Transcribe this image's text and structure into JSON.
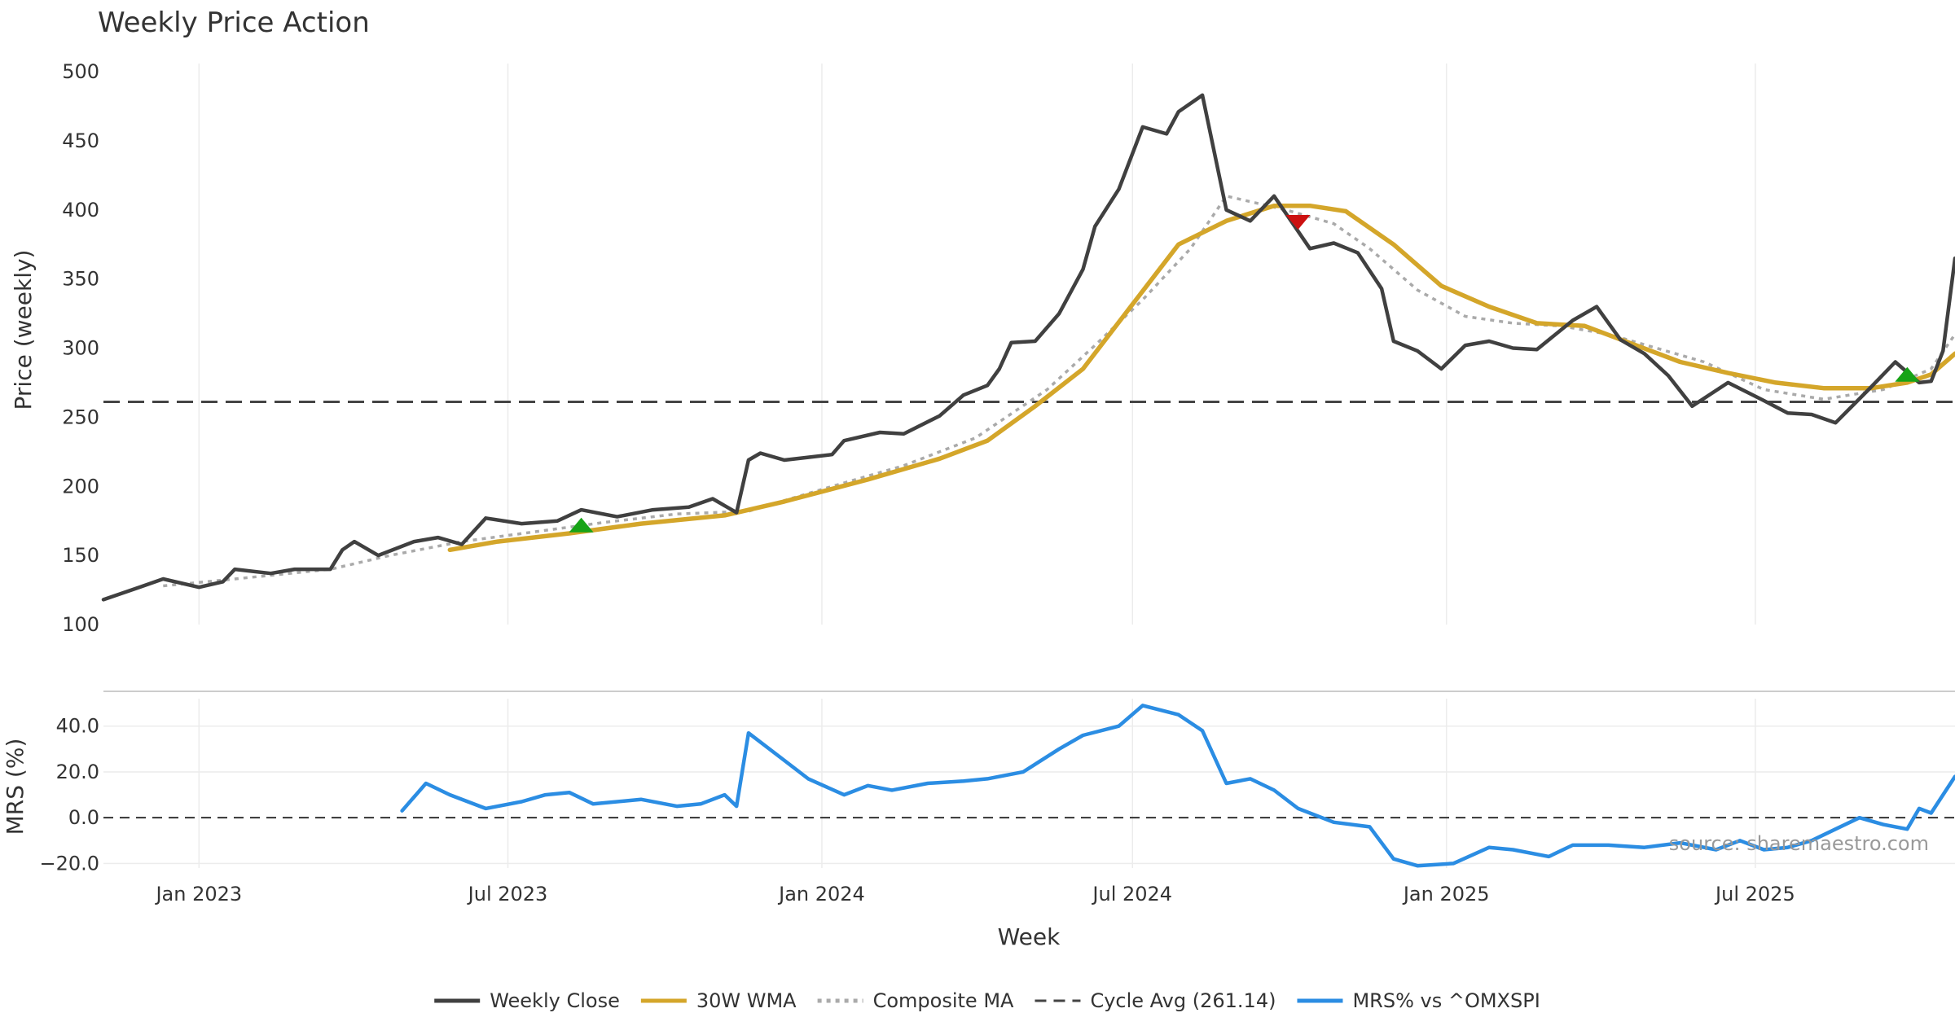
{
  "chart_data": {
    "type": "line",
    "title": "Weekly Price Action",
    "source": "source: sharemaestro.com",
    "xlabel": "Week",
    "x_ticks": [
      "Jan 2023",
      "Jul 2023",
      "Jan 2024",
      "Jul 2024",
      "Jan 2025",
      "Jul 2025"
    ],
    "x_tick_dates": [
      "2023-01-01",
      "2023-07-01",
      "2024-01-01",
      "2024-07-01",
      "2025-01-01",
      "2025-07-01"
    ],
    "x_range": [
      "2022-11-06",
      "2025-10-26"
    ],
    "price_panel": {
      "ylabel": "Price (weekly)",
      "ylim": [
        100,
        500
      ],
      "yticks": [
        "100",
        "150",
        "200",
        "250",
        "300",
        "350",
        "400",
        "450",
        "500"
      ],
      "cycle_avg": 261.14,
      "series": [
        {
          "name": "Weekly Close",
          "color": "#404040",
          "style": "solid",
          "points": [
            [
              "2022-11-06",
              118
            ],
            [
              "2022-11-27",
              127
            ],
            [
              "2022-12-11",
              133
            ],
            [
              "2023-01-01",
              127
            ],
            [
              "2023-01-15",
              131
            ],
            [
              "2023-01-22",
              140
            ],
            [
              "2023-02-12",
              137
            ],
            [
              "2023-02-26",
              140
            ],
            [
              "2023-03-19",
              140
            ],
            [
              "2023-03-26",
              154
            ],
            [
              "2023-04-02",
              160
            ],
            [
              "2023-04-16",
              150
            ],
            [
              "2023-05-07",
              160
            ],
            [
              "2023-05-21",
              163
            ],
            [
              "2023-06-04",
              158
            ],
            [
              "2023-06-18",
              177
            ],
            [
              "2023-07-09",
              173
            ],
            [
              "2023-07-30",
              175
            ],
            [
              "2023-08-13",
              183
            ],
            [
              "2023-09-03",
              178
            ],
            [
              "2023-09-24",
              183
            ],
            [
              "2023-10-15",
              185
            ],
            [
              "2023-10-29",
              191
            ],
            [
              "2023-11-12",
              181
            ],
            [
              "2023-11-19",
              219
            ],
            [
              "2023-11-26",
              224
            ],
            [
              "2023-12-10",
              219
            ],
            [
              "2023-12-24",
              221
            ],
            [
              "2024-01-07",
              223
            ],
            [
              "2024-01-14",
              233
            ],
            [
              "2024-02-04",
              239
            ],
            [
              "2024-02-18",
              238
            ],
            [
              "2024-03-10",
              251
            ],
            [
              "2024-03-24",
              266
            ],
            [
              "2024-04-07",
              273
            ],
            [
              "2024-04-14",
              285
            ],
            [
              "2024-04-21",
              304
            ],
            [
              "2024-05-05",
              305
            ],
            [
              "2024-05-19",
              325
            ],
            [
              "2024-06-02",
              357
            ],
            [
              "2024-06-09",
              388
            ],
            [
              "2024-06-23",
              415
            ],
            [
              "2024-07-07",
              460
            ],
            [
              "2024-07-21",
              455
            ],
            [
              "2024-07-28",
              471
            ],
            [
              "2024-08-11",
              483
            ],
            [
              "2024-08-25",
              400
            ],
            [
              "2024-09-08",
              392
            ],
            [
              "2024-09-22",
              410
            ],
            [
              "2024-10-13",
              372
            ],
            [
              "2024-10-27",
              376
            ],
            [
              "2024-11-10",
              369
            ],
            [
              "2024-11-24",
              343
            ],
            [
              "2024-12-01",
              305
            ],
            [
              "2024-12-15",
              298
            ],
            [
              "2024-12-29",
              285
            ],
            [
              "2025-01-12",
              302
            ],
            [
              "2025-01-26",
              305
            ],
            [
              "2025-02-09",
              300
            ],
            [
              "2025-02-23",
              299
            ],
            [
              "2025-03-16",
              320
            ],
            [
              "2025-03-30",
              330
            ],
            [
              "2025-04-13",
              306
            ],
            [
              "2025-04-27",
              296
            ],
            [
              "2025-05-11",
              280
            ],
            [
              "2025-05-25",
              258
            ],
            [
              "2025-06-15",
              275
            ],
            [
              "2025-07-06",
              262
            ],
            [
              "2025-07-20",
              253
            ],
            [
              "2025-08-03",
              252
            ],
            [
              "2025-08-17",
              246
            ],
            [
              "2025-09-07",
              272
            ],
            [
              "2025-09-21",
              290
            ],
            [
              "2025-10-05",
              275
            ],
            [
              "2025-10-12",
              276
            ],
            [
              "2025-10-19",
              298
            ],
            [
              "2025-10-26",
              365
            ]
          ]
        },
        {
          "name": "30W WMA",
          "color": "#d4a62a",
          "style": "solid",
          "points": [
            [
              "2023-05-28",
              154
            ],
            [
              "2023-06-25",
              160
            ],
            [
              "2023-08-06",
              166
            ],
            [
              "2023-09-17",
              173
            ],
            [
              "2023-11-05",
              179
            ],
            [
              "2023-12-10",
              189
            ],
            [
              "2024-01-28",
              205
            ],
            [
              "2024-03-10",
              220
            ],
            [
              "2024-04-07",
              233
            ],
            [
              "2024-05-05",
              258
            ],
            [
              "2024-06-02",
              285
            ],
            [
              "2024-06-30",
              330
            ],
            [
              "2024-07-28",
              375
            ],
            [
              "2024-08-25",
              392
            ],
            [
              "2024-09-22",
              403
            ],
            [
              "2024-10-13",
              403
            ],
            [
              "2024-11-03",
              399
            ],
            [
              "2024-12-01",
              375
            ],
            [
              "2024-12-29",
              345
            ],
            [
              "2025-01-26",
              330
            ],
            [
              "2025-02-23",
              318
            ],
            [
              "2025-03-23",
              316
            ],
            [
              "2025-04-20",
              303
            ],
            [
              "2025-05-18",
              290
            ],
            [
              "2025-06-15",
              282
            ],
            [
              "2025-07-13",
              275
            ],
            [
              "2025-08-10",
              271
            ],
            [
              "2025-09-07",
              271
            ],
            [
              "2025-09-28",
              275
            ],
            [
              "2025-10-12",
              281
            ],
            [
              "2025-10-26",
              296
            ]
          ]
        },
        {
          "name": "Composite MA",
          "color": "#aaaaaa",
          "style": "dotted",
          "points": [
            [
              "2022-12-11",
              128
            ],
            [
              "2023-01-22",
              133
            ],
            [
              "2023-03-19",
              140
            ],
            [
              "2023-04-23",
              150
            ],
            [
              "2023-06-04",
              160
            ],
            [
              "2023-07-16",
              167
            ],
            [
              "2023-08-27",
              174
            ],
            [
              "2023-10-08",
              180
            ],
            [
              "2023-11-19",
              182
            ],
            [
              "2024-01-07",
              200
            ],
            [
              "2024-02-18",
              215
            ],
            [
              "2024-03-31",
              235
            ],
            [
              "2024-05-12",
              270
            ],
            [
              "2024-06-09",
              302
            ],
            [
              "2024-07-07",
              335
            ],
            [
              "2024-08-04",
              372
            ],
            [
              "2024-08-25",
              410
            ],
            [
              "2024-09-29",
              400
            ],
            [
              "2024-10-27",
              390
            ],
            [
              "2024-11-17",
              372
            ],
            [
              "2024-12-15",
              342
            ],
            [
              "2025-01-12",
              323
            ],
            [
              "2025-02-09",
              318
            ],
            [
              "2025-03-09",
              316
            ],
            [
              "2025-04-06",
              310
            ],
            [
              "2025-05-04",
              300
            ],
            [
              "2025-06-01",
              290
            ],
            [
              "2025-07-06",
              270
            ],
            [
              "2025-08-10",
              263
            ],
            [
              "2025-09-14",
              270
            ],
            [
              "2025-10-12",
              285
            ],
            [
              "2025-10-26",
              310
            ]
          ]
        }
      ],
      "signals": [
        {
          "type": "buy",
          "date": "2023-08-13",
          "value": 172,
          "color": "#17a317"
        },
        {
          "type": "sell",
          "date": "2024-10-06",
          "value": 391,
          "color": "#cc1111"
        },
        {
          "type": "buy",
          "date": "2025-09-28",
          "value": 281,
          "color": "#17a317"
        }
      ]
    },
    "mrs_panel": {
      "ylabel": "MRS (%)",
      "ylim": [
        -22,
        52
      ],
      "yticks": [
        {
          "value": -20,
          "label": "−20.0"
        },
        {
          "value": 0,
          "label": "0.0"
        },
        {
          "value": 20,
          "label": "20.0"
        },
        {
          "value": 40,
          "label": "40.0"
        }
      ],
      "series": [
        {
          "name": "MRS% vs ^OMXSPI",
          "color": "#2b8de3",
          "style": "solid",
          "points": [
            [
              "2023-04-30",
              3
            ],
            [
              "2023-05-14",
              15
            ],
            [
              "2023-05-28",
              10
            ],
            [
              "2023-06-18",
              4
            ],
            [
              "2023-07-09",
              7
            ],
            [
              "2023-07-23",
              10
            ],
            [
              "2023-08-06",
              11
            ],
            [
              "2023-08-20",
              6
            ],
            [
              "2023-09-17",
              8
            ],
            [
              "2023-10-08",
              5
            ],
            [
              "2023-10-22",
              6
            ],
            [
              "2023-11-05",
              10
            ],
            [
              "2023-11-12",
              5
            ],
            [
              "2023-11-19",
              37
            ],
            [
              "2023-12-10",
              25
            ],
            [
              "2023-12-24",
              17
            ],
            [
              "2024-01-14",
              10
            ],
            [
              "2024-01-28",
              14
            ],
            [
              "2024-02-11",
              12
            ],
            [
              "2024-03-03",
              15
            ],
            [
              "2024-03-24",
              16
            ],
            [
              "2024-04-07",
              17
            ],
            [
              "2024-04-28",
              20
            ],
            [
              "2024-05-19",
              30
            ],
            [
              "2024-06-02",
              36
            ],
            [
              "2024-06-23",
              40
            ],
            [
              "2024-07-07",
              49
            ],
            [
              "2024-07-28",
              45
            ],
            [
              "2024-08-11",
              38
            ],
            [
              "2024-08-25",
              15
            ],
            [
              "2024-09-08",
              17
            ],
            [
              "2024-09-22",
              12
            ],
            [
              "2024-10-06",
              4
            ],
            [
              "2024-10-27",
              -2
            ],
            [
              "2024-11-17",
              -4
            ],
            [
              "2024-12-01",
              -18
            ],
            [
              "2024-12-15",
              -21
            ],
            [
              "2025-01-05",
              -20
            ],
            [
              "2025-01-26",
              -13
            ],
            [
              "2025-02-09",
              -14
            ],
            [
              "2025-03-02",
              -17
            ],
            [
              "2025-03-16",
              -12
            ],
            [
              "2025-04-06",
              -12
            ],
            [
              "2025-04-27",
              -13
            ],
            [
              "2025-05-18",
              -11
            ],
            [
              "2025-06-08",
              -14
            ],
            [
              "2025-06-22",
              -10
            ],
            [
              "2025-07-06",
              -14
            ],
            [
              "2025-07-20",
              -13
            ],
            [
              "2025-08-03",
              -10
            ],
            [
              "2025-08-17",
              -5
            ],
            [
              "2025-08-31",
              0
            ],
            [
              "2025-09-14",
              -3
            ],
            [
              "2025-09-28",
              -5
            ],
            [
              "2025-10-05",
              4
            ],
            [
              "2025-10-12",
              2
            ],
            [
              "2025-10-19",
              10
            ],
            [
              "2025-10-26",
              18
            ]
          ]
        }
      ]
    },
    "legend_position": "bottom-center",
    "legend": [
      {
        "name": "Weekly Close",
        "color": "#404040",
        "style": "solid"
      },
      {
        "name": "30W WMA",
        "color": "#d4a62a",
        "style": "solid"
      },
      {
        "name": "Composite MA",
        "color": "#aaaaaa",
        "style": "dotted"
      },
      {
        "name": "Cycle Avg (261.14)",
        "color": "#444444",
        "style": "dashed"
      },
      {
        "name": "MRS% vs ^OMXSPI",
        "color": "#2b8de3",
        "style": "solid"
      }
    ]
  }
}
